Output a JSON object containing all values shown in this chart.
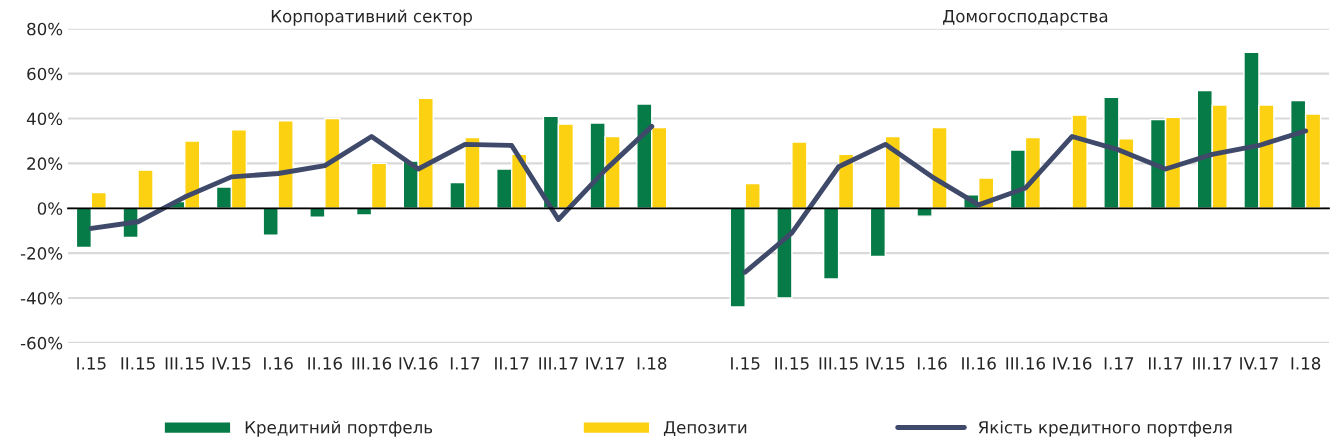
{
  "chart_data": {
    "type": "bar",
    "categories": [
      "I.15",
      "II.15",
      "III.15",
      "IV.15",
      "I.16",
      "II.16",
      "III.16",
      "IV.16",
      "I.17",
      "II.17",
      "III.17",
      "IV.17",
      "I.18",
      null,
      "I.15",
      "II.15",
      "III.15",
      "IV.15",
      "I.16",
      "II.16",
      "III.16",
      "IV.16",
      "I.17",
      "II.17",
      "III.17",
      "IV.17",
      "I.18"
    ],
    "series": [
      {
        "name": "Кредитний портфель",
        "color": "#077b47",
        "values": [
          -17.5,
          -13,
          3,
          9.5,
          -12,
          -4,
          -3,
          21,
          11.5,
          17.5,
          41,
          38,
          46.5,
          null,
          -44,
          -40,
          -31.5,
          -21.5,
          -3.5,
          6,
          26,
          -0.3,
          49.5,
          39.5,
          52.5,
          69.5,
          48
        ]
      },
      {
        "name": "Депозити",
        "color": "#fbd112",
        "values": [
          7,
          17,
          30,
          35,
          39,
          40,
          20,
          49,
          31.5,
          24,
          37.5,
          32,
          36,
          null,
          11,
          29.5,
          24,
          32,
          36,
          13.5,
          31.5,
          41.5,
          31,
          40.5,
          46,
          46,
          42
        ]
      },
      {
        "name": "Якість кредитного портфеля",
        "type": "line",
        "color": "#3f4a6b",
        "values": [
          -9,
          -6,
          5,
          14,
          15.5,
          19,
          32,
          17.5,
          28.5,
          28,
          -5,
          17,
          36.5,
          null,
          -28.5,
          -11,
          18.5,
          28.5,
          14,
          1.5,
          9,
          32,
          26,
          17.5,
          24,
          28,
          34.5
        ]
      }
    ],
    "annotations": [
      "Корпоративний сектор",
      "Домогосподарства"
    ],
    "ylim": [
      -60,
      80
    ],
    "yticks": [
      {
        "value": -60,
        "label": "-60%"
      },
      {
        "value": -40,
        "label": "-40%"
      },
      {
        "value": -20,
        "label": "-20%"
      },
      {
        "value": 0,
        "label": "0%"
      },
      {
        "value": 20,
        "label": "20%"
      },
      {
        "value": 40,
        "label": "40%"
      },
      {
        "value": 60,
        "label": "60%"
      },
      {
        "value": 80,
        "label": "80%"
      }
    ],
    "grid": "y",
    "legend": "bottom",
    "marker": "none",
    "line_style": "solid"
  }
}
